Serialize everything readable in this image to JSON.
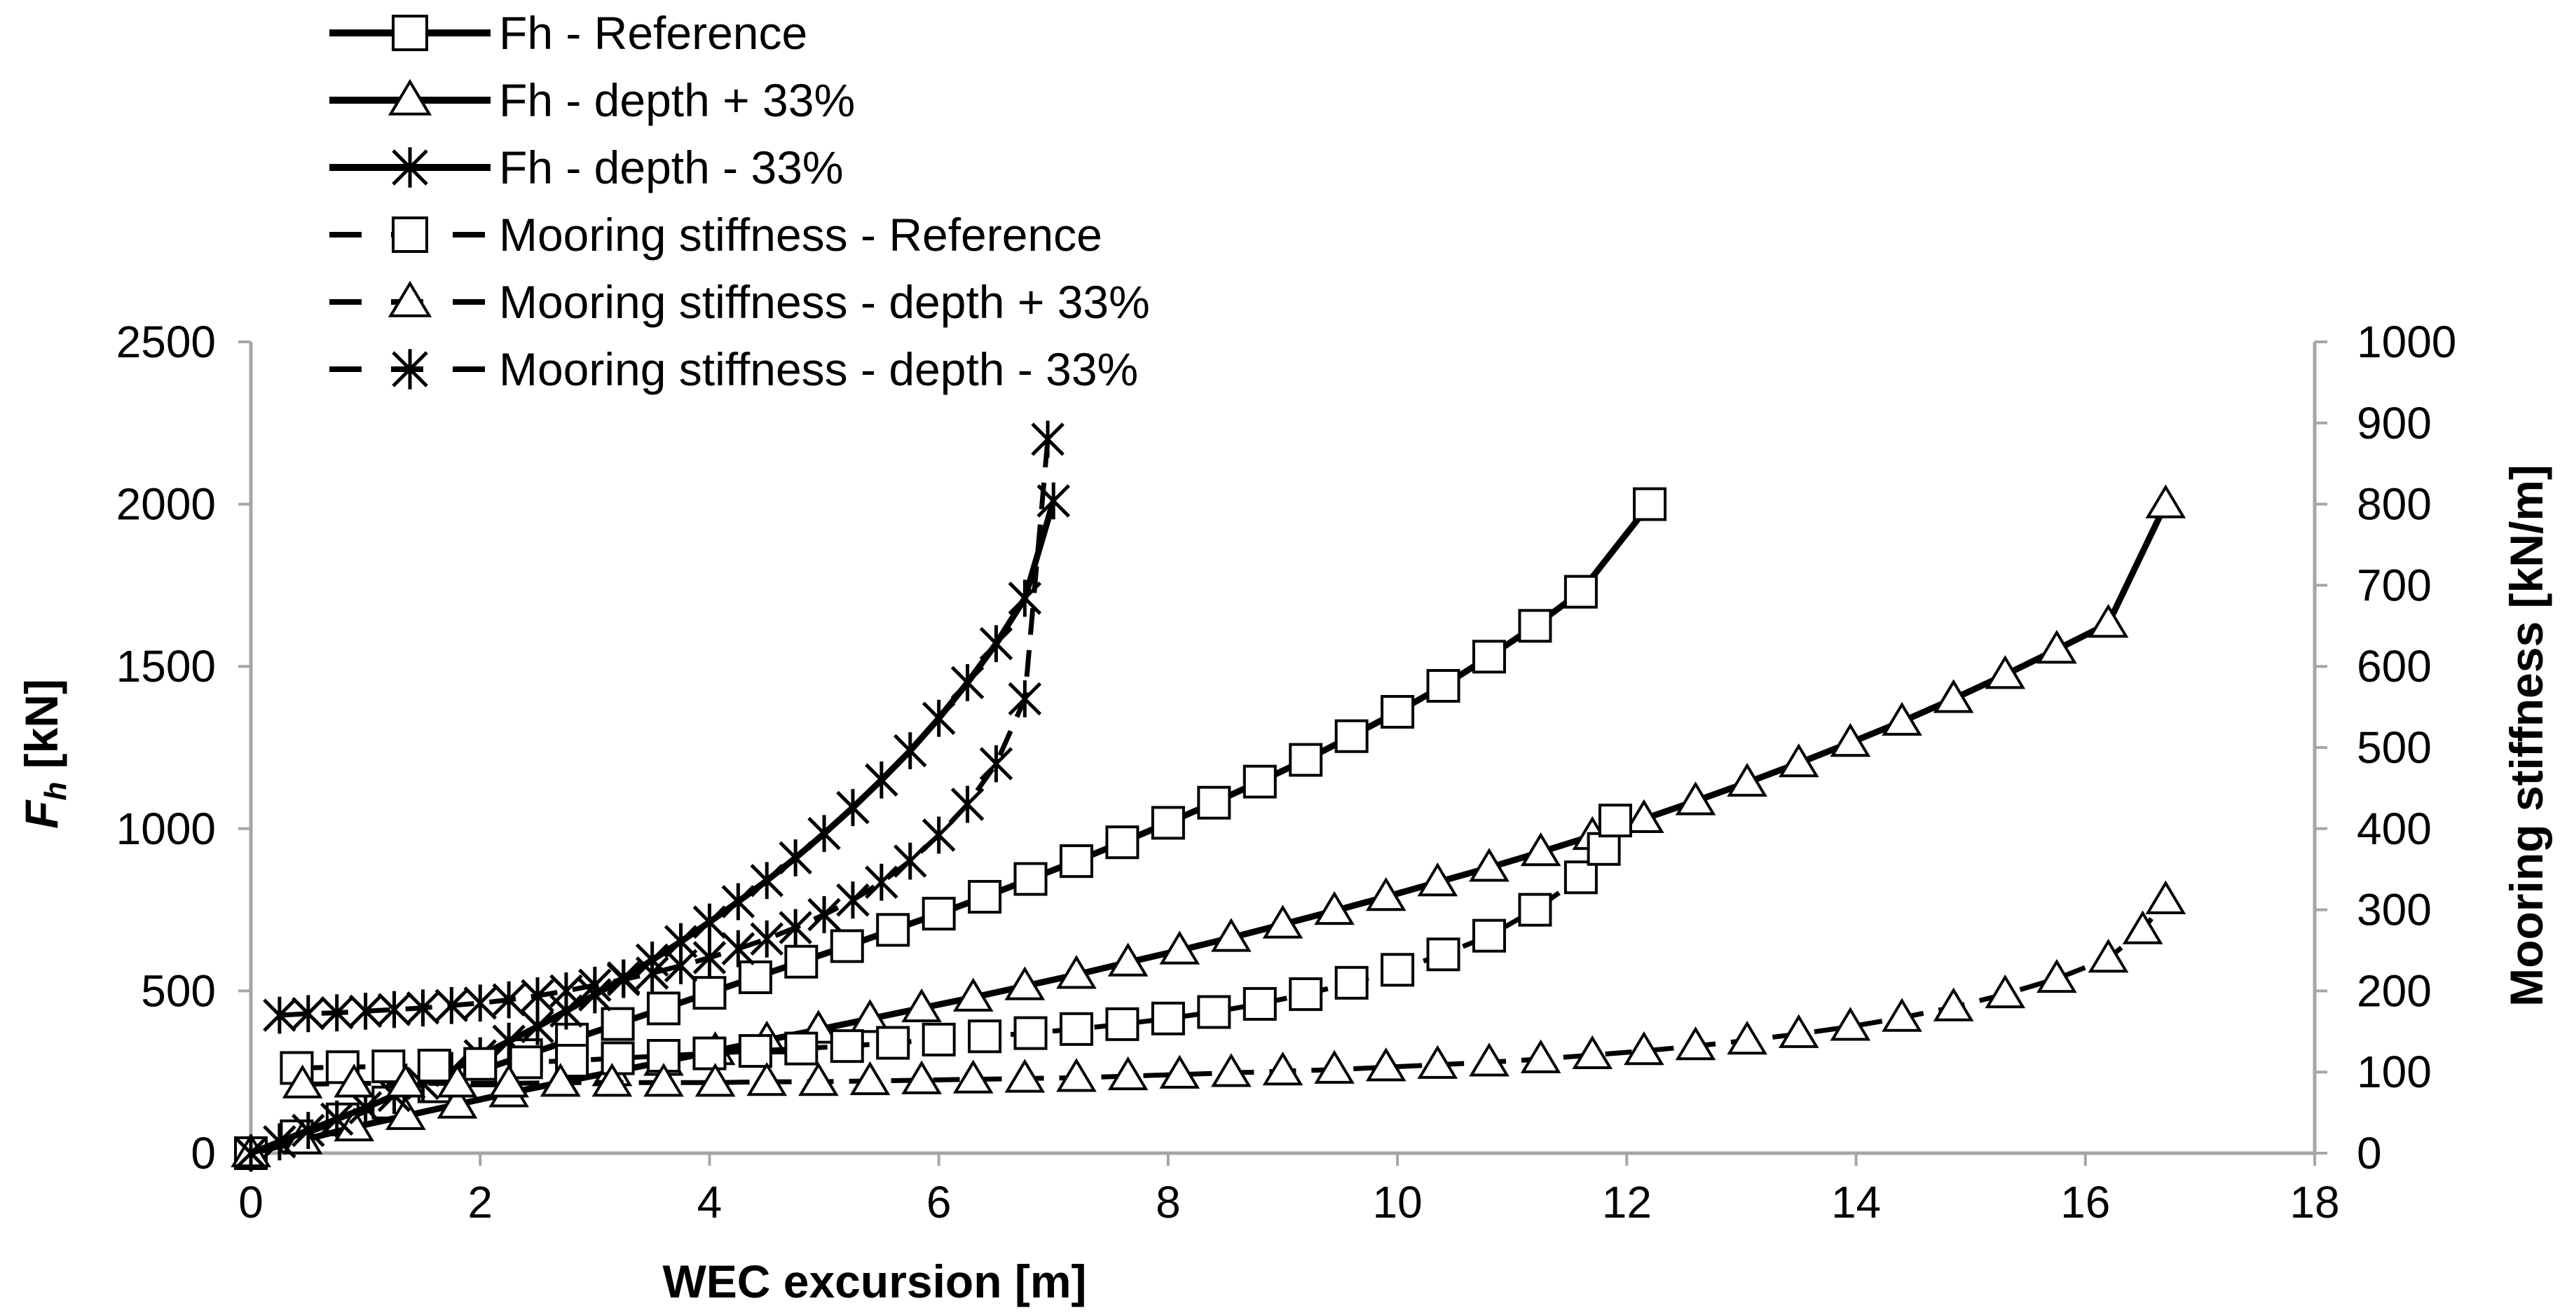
{
  "chart_data": {
    "type": "line",
    "xlabel": "WEC excursion [m]",
    "ylabel": "F",
    "ylabel_sub": "h",
    "ylabel_unit": " [kN]",
    "y2label": "Mooring stiffness [kN/m]",
    "xlim": [
      0,
      18
    ],
    "ylim": [
      0,
      2500
    ],
    "y2lim": [
      0,
      1000
    ],
    "x_ticks": [
      "0",
      "2",
      "4",
      "6",
      "8",
      "10",
      "12",
      "14",
      "16",
      "18"
    ],
    "y_ticks": [
      "0",
      "500",
      "1000",
      "1500",
      "2000",
      "2500"
    ],
    "y2_ticks": [
      "0",
      "100",
      "200",
      "300",
      "400",
      "500",
      "600",
      "700",
      "800",
      "900",
      "1000"
    ],
    "grid": false,
    "legend_position": "top-left",
    "colors": {
      "series": "#000000",
      "axis": "#a6a6a6"
    },
    "series": [
      {
        "name": "Fh - Reference",
        "axis": "left",
        "style": "solid",
        "marker": "square",
        "x": [
          0,
          0.4,
          0.8,
          1.2,
          1.6,
          2.0,
          2.4,
          2.8,
          3.2,
          3.6,
          4.0,
          4.4,
          4.8,
          5.2,
          5.6,
          6.0,
          6.4,
          6.8,
          7.2,
          7.6,
          8.0,
          8.4,
          8.8,
          9.2,
          9.6,
          10.0,
          10.4,
          10.8,
          11.2,
          11.6,
          12.2
        ],
        "y": [
          0,
          52,
          104,
          156,
          206,
          255,
          302,
          350,
          398,
          446,
          494,
          542,
          590,
          638,
          688,
          738,
          790,
          845,
          900,
          958,
          1018,
          1080,
          1145,
          1212,
          1285,
          1360,
          1440,
          1530,
          1625,
          1730,
          2000
        ]
      },
      {
        "name": "Fh - depth + 33%",
        "axis": "left",
        "style": "solid",
        "marker": "triangle",
        "x": [
          0,
          0.45,
          0.9,
          1.35,
          1.8,
          2.25,
          2.7,
          3.15,
          3.6,
          4.05,
          4.5,
          4.95,
          5.4,
          5.85,
          6.3,
          6.75,
          7.2,
          7.65,
          8.1,
          8.55,
          9.0,
          9.45,
          9.9,
          10.35,
          10.8,
          11.25,
          11.7,
          12.15,
          12.6,
          13.05,
          13.5,
          13.95,
          14.4,
          14.85,
          15.3,
          15.75,
          16.2,
          16.7
        ],
        "y": [
          0,
          40,
          80,
          115,
          150,
          185,
          218,
          250,
          282,
          315,
          348,
          381,
          414,
          447,
          480,
          515,
          550,
          588,
          625,
          664,
          705,
          747,
          790,
          835,
          880,
          928,
          978,
          1030,
          1085,
          1142,
          1202,
          1265,
          1330,
          1400,
          1474,
          1552,
          1632,
          2000
        ]
      },
      {
        "name": "Fh - depth - 33%",
        "axis": "left",
        "style": "solid",
        "marker": "asterisk",
        "x": [
          0,
          0.25,
          0.5,
          0.75,
          1.0,
          1.25,
          1.5,
          1.75,
          2.0,
          2.25,
          2.5,
          2.75,
          3.0,
          3.25,
          3.5,
          3.75,
          4.0,
          4.25,
          4.5,
          4.75,
          5.0,
          5.25,
          5.5,
          5.75,
          6.0,
          6.25,
          6.5,
          6.75,
          7.0
        ],
        "y": [
          0,
          35,
          70,
          105,
          140,
          178,
          215,
          255,
          300,
          345,
          390,
          438,
          488,
          540,
          595,
          652,
          712,
          775,
          840,
          910,
          985,
          1065,
          1150,
          1240,
          1340,
          1450,
          1570,
          1710,
          2010
        ]
      },
      {
        "name": "Mooring stiffness  - Reference",
        "axis": "right",
        "style": "dashed",
        "marker": "square",
        "x": [
          0.4,
          0.8,
          1.2,
          1.6,
          2.0,
          2.4,
          2.8,
          3.2,
          3.6,
          4.0,
          4.4,
          4.8,
          5.2,
          5.6,
          6.0,
          6.4,
          6.8,
          7.2,
          7.6,
          8.0,
          8.4,
          8.8,
          9.2,
          9.6,
          10.0,
          10.4,
          10.8,
          11.2,
          11.6,
          11.8,
          11.9
        ],
        "y": [
          105,
          106,
          107,
          108,
          110,
          112,
          114,
          117,
          120,
          123,
          126,
          129,
          132,
          136,
          140,
          144,
          148,
          153,
          159,
          166,
          174,
          184,
          196,
          210,
          226,
          245,
          268,
          300,
          340,
          375,
          410
        ]
      },
      {
        "name": "Mooring stiffness - depth + 33%",
        "axis": "right",
        "style": "dashed",
        "marker": "triangle",
        "x": [
          0.45,
          0.9,
          1.35,
          1.8,
          2.25,
          2.7,
          3.15,
          3.6,
          4.05,
          4.5,
          4.95,
          5.4,
          5.85,
          6.3,
          6.75,
          7.2,
          7.65,
          8.1,
          8.55,
          9.0,
          9.45,
          9.9,
          10.35,
          10.8,
          11.25,
          11.7,
          12.15,
          12.6,
          13.05,
          13.5,
          13.95,
          14.4,
          14.85,
          15.3,
          15.75,
          16.2,
          16.5,
          16.7
        ],
        "y": [
          85,
          86,
          86,
          86,
          86,
          87,
          87,
          87,
          87,
          88,
          88,
          89,
          90,
          91,
          92,
          93,
          95,
          97,
          99,
          101,
          103,
          106,
          109,
          112,
          116,
          121,
          126,
          132,
          139,
          147,
          156,
          167,
          180,
          196,
          215,
          240,
          275,
          312
        ]
      },
      {
        "name": "Mooring stiffness - depth - 33%",
        "axis": "right",
        "style": "dashed",
        "marker": "asterisk",
        "x": [
          0.25,
          0.5,
          0.75,
          1.0,
          1.25,
          1.5,
          1.75,
          2.0,
          2.25,
          2.5,
          2.75,
          3.0,
          3.25,
          3.5,
          3.75,
          4.0,
          4.25,
          4.5,
          4.75,
          5.0,
          5.25,
          5.5,
          5.75,
          6.0,
          6.25,
          6.5,
          6.75,
          6.95
        ],
        "y": [
          170,
          172,
          173,
          175,
          177,
          179,
          182,
          185,
          189,
          194,
          200,
          207,
          214,
          222,
          231,
          241,
          252,
          264,
          278,
          294,
          312,
          334,
          360,
          392,
          430,
          480,
          560,
          880
        ]
      }
    ]
  }
}
